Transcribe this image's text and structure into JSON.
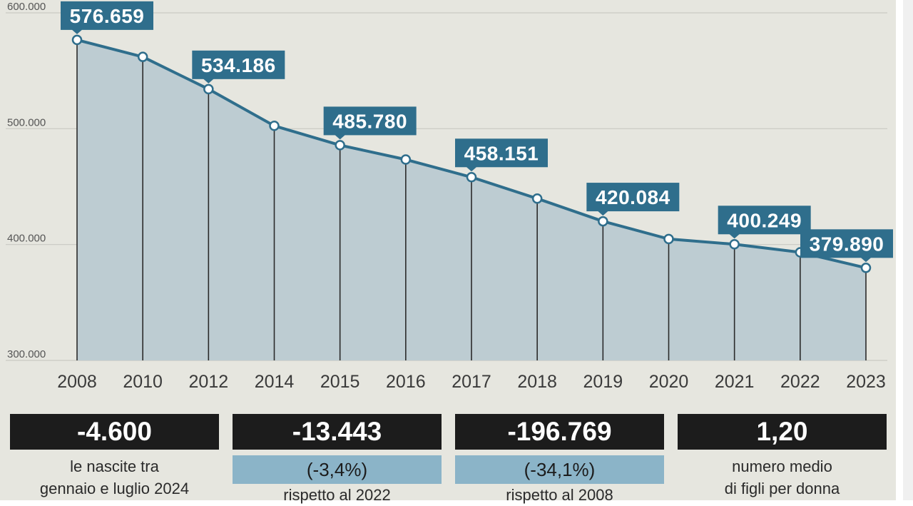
{
  "chart_data": {
    "type": "area",
    "categories": [
      "2008",
      "2010",
      "2012",
      "2014",
      "2015",
      "2016",
      "2017",
      "2018",
      "2019",
      "2020",
      "2021",
      "2022",
      "2023"
    ],
    "values": [
      576659,
      562000,
      534186,
      502500,
      485780,
      473400,
      458151,
      439700,
      420084,
      404800,
      400249,
      393300,
      379890
    ],
    "data_labels": [
      {
        "category": "2008",
        "text": "576.659"
      },
      {
        "category": "2012",
        "text": "534.186"
      },
      {
        "category": "2015",
        "text": "485.780"
      },
      {
        "category": "2017",
        "text": "458.151"
      },
      {
        "category": "2019",
        "text": "420.084"
      },
      {
        "category": "2021",
        "text": "400.249"
      },
      {
        "category": "2023",
        "text": "379.890"
      }
    ],
    "yticks": [
      {
        "value": 600000,
        "label": "600.000"
      },
      {
        "value": 500000,
        "label": "500.000"
      },
      {
        "value": 400000,
        "label": "400.000"
      },
      {
        "value": 300000,
        "label": "300.000"
      }
    ],
    "ylim": [
      300000,
      600000
    ],
    "grid": true,
    "colors": {
      "line": "#2f6e8c",
      "fill": "#bdccd2",
      "label_bg": "#2f6e8c",
      "grid": "#c9c9c2"
    }
  },
  "stats": [
    {
      "value": "-4.600",
      "sub": "",
      "desc": [
        "le nascite tra",
        "gennaio e luglio 2024"
      ]
    },
    {
      "value": "-13.443",
      "sub": "(-3,4%)",
      "desc": [
        "rispetto al 2022"
      ]
    },
    {
      "value": "-196.769",
      "sub": "(-34,1%)",
      "desc": [
        "rispetto al 2008"
      ]
    },
    {
      "value": "1,20",
      "sub": "",
      "desc": [
        "numero medio",
        "di figli per donna"
      ]
    }
  ]
}
